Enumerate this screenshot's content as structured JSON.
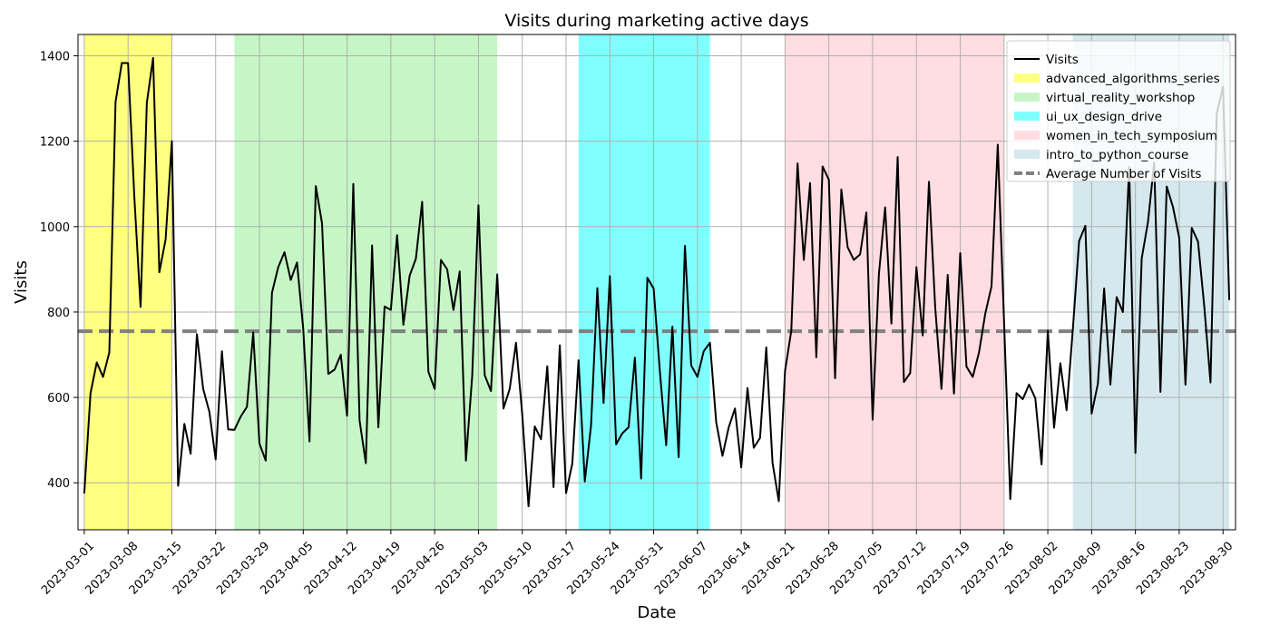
{
  "chart_data": {
    "type": "line",
    "title": "Visits during marketing active days",
    "xlabel": "Date",
    "ylabel": "Visits",
    "x_start": "2023-03-01",
    "x_end": "2023-08-30",
    "xlim": [
      "2023-02-28",
      "2023-09-01"
    ],
    "ylim": [
      290,
      1450
    ],
    "y_ticks": [
      400,
      600,
      800,
      1000,
      1200,
      1400
    ],
    "x_ticks": [
      "2023-03-01",
      "2023-03-08",
      "2023-03-15",
      "2023-03-22",
      "2023-03-29",
      "2023-04-05",
      "2023-04-12",
      "2023-04-19",
      "2023-04-26",
      "2023-05-03",
      "2023-05-10",
      "2023-05-17",
      "2023-05-24",
      "2023-05-31",
      "2023-06-07",
      "2023-06-14",
      "2023-06-21",
      "2023-06-28",
      "2023-07-05",
      "2023-07-12",
      "2023-07-19",
      "2023-07-26",
      "2023-08-02",
      "2023-08-09",
      "2023-08-16",
      "2023-08-23",
      "2023-08-30"
    ],
    "grid": true,
    "legend_position": "upper right",
    "average": 755,
    "series": [
      {
        "name": "Visits",
        "color": "#000000",
        "values": [
          375,
          610,
          682,
          648,
          705,
          1292,
          1383,
          1383,
          1070,
          812,
          1290,
          1395,
          893,
          970,
          1200,
          393,
          538,
          468,
          748,
          620,
          566,
          455,
          708,
          525,
          524,
          555,
          578,
          752,
          492,
          452,
          845,
          905,
          940,
          875,
          916,
          760,
          497,
          1095,
          1008,
          655,
          665,
          700,
          557,
          1100,
          546,
          446,
          956,
          530,
          813,
          805,
          980,
          770,
          885,
          925,
          1058,
          660,
          620,
          922,
          900,
          805,
          895,
          452,
          650,
          1050,
          652,
          615,
          888,
          574,
          620,
          728,
          560,
          345,
          532,
          502,
          673,
          390,
          722,
          376,
          445,
          687,
          403,
          535,
          856,
          587,
          884,
          490,
          516,
          530,
          693,
          410,
          880,
          855,
          660,
          488,
          766,
          460,
          955,
          675,
          648,
          708,
          728,
          542,
          463,
          530,
          574,
          436,
          622,
          482,
          505,
          717,
          447,
          357,
          662,
          756,
          1148,
          922,
          1102,
          694,
          1141,
          1110,
          645,
          1087,
          952,
          922,
          935,
          1033,
          548,
          888,
          1045,
          773,
          1163,
          636,
          657,
          905,
          745,
          1105,
          811,
          620,
          887,
          609,
          938,
          672,
          648,
          705,
          796,
          860,
          1192,
          780,
          362,
          610,
          596,
          630,
          598,
          443,
          756,
          529,
          680,
          570,
          760,
          966,
          1002,
          562,
          632,
          855,
          630,
          835,
          800,
          1140,
          470,
          925,
          1010,
          1150,
          613,
          1094,
          1046,
          974,
          630,
          997,
          965,
          814,
          635,
          1265,
          1328,
          828
        ]
      }
    ],
    "campaigns": [
      {
        "name": "advanced_algorithms_series",
        "start": "2023-03-01",
        "end": "2023-03-15",
        "color": "#ffff80"
      },
      {
        "name": "virtual_reality_workshop",
        "start": "2023-03-25",
        "end": "2023-05-06",
        "color": "#c6f6c6"
      },
      {
        "name": "ui_ux_design_drive",
        "start": "2023-05-19",
        "end": "2023-06-09",
        "color": "#80ffff"
      },
      {
        "name": "women_in_tech_symposium",
        "start": "2023-06-21",
        "end": "2023-07-26",
        "color": "#ffdde2"
      },
      {
        "name": "intro_to_python_course",
        "start": "2023-08-06",
        "end": "2023-08-31",
        "color": "#d4e8ee"
      }
    ],
    "legend_entries": [
      {
        "label": "Visits",
        "kind": "line",
        "color": "#000000"
      },
      {
        "label": "advanced_algorithms_series",
        "kind": "patch",
        "color": "#ffff80"
      },
      {
        "label": "virtual_reality_workshop",
        "kind": "patch",
        "color": "#c6f6c6"
      },
      {
        "label": "ui_ux_design_drive",
        "kind": "patch",
        "color": "#80ffff"
      },
      {
        "label": "women_in_tech_symposium",
        "kind": "patch",
        "color": "#ffdde2"
      },
      {
        "label": "intro_to_python_course",
        "kind": "patch",
        "color": "#d4e8ee"
      },
      {
        "label": "Average Number of Visits",
        "kind": "dashed",
        "color": "#808080"
      }
    ]
  }
}
